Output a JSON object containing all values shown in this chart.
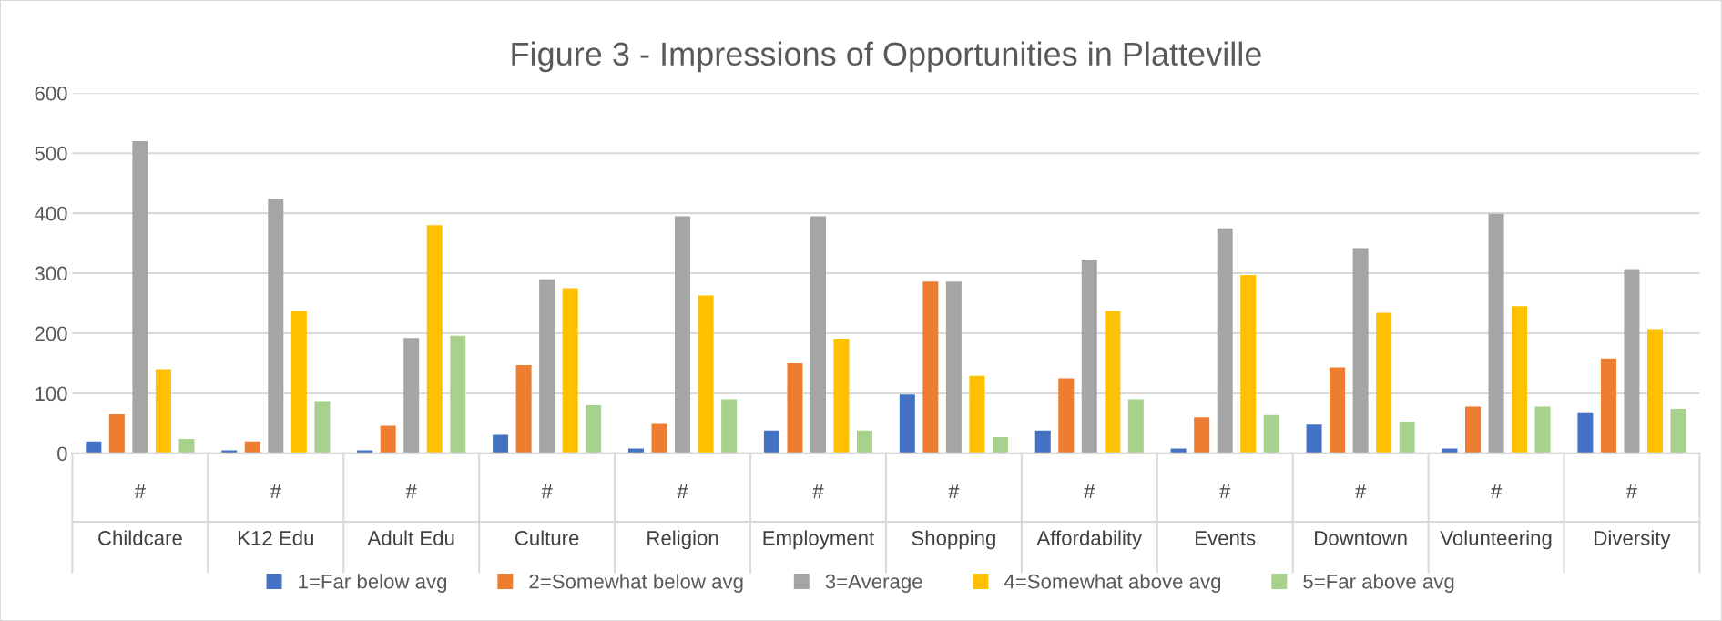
{
  "chart_data": {
    "type": "bar",
    "title": "Figure 3 - Impressions of Opportunities in Platteville",
    "categories": [
      "#\nChildcare",
      "#\nK12 Edu",
      "#\nAdult Edu",
      "#\nCulture",
      "#\nReligion",
      "#\nEmployment",
      "#\nShopping",
      "#\nAffordability",
      "#\nEvents",
      "#\nDowntown",
      "#\nVolunteering",
      "#\nDiversity"
    ],
    "series": [
      {
        "name": "1=Far below avg",
        "color": "#4472c4",
        "values": [
          20,
          5,
          5,
          31,
          8,
          38,
          98,
          38,
          8,
          48,
          8,
          67
        ]
      },
      {
        "name": "2=Somewhat below avg",
        "color": "#ed7d31",
        "values": [
          65,
          20,
          46,
          147,
          49,
          150,
          286,
          125,
          60,
          143,
          78,
          158
        ]
      },
      {
        "name": "3=Average",
        "color": "#a5a5a5",
        "values": [
          520,
          424,
          192,
          290,
          395,
          395,
          286,
          323,
          375,
          342,
          399,
          307
        ]
      },
      {
        "name": "4=Somewhat above avg",
        "color": "#ffc000",
        "values": [
          140,
          237,
          380,
          275,
          263,
          191,
          129,
          237,
          297,
          234,
          245,
          207
        ]
      },
      {
        "name": "5=Far above avg",
        "color": "#a9d18e",
        "values": [
          24,
          87,
          196,
          80,
          90,
          38,
          27,
          90,
          64,
          53,
          78,
          74
        ]
      }
    ],
    "ylim": [
      0,
      600
    ],
    "yticks": [
      0,
      100,
      200,
      300,
      400,
      500,
      600
    ],
    "grid": "y",
    "legend": "bottom"
  }
}
